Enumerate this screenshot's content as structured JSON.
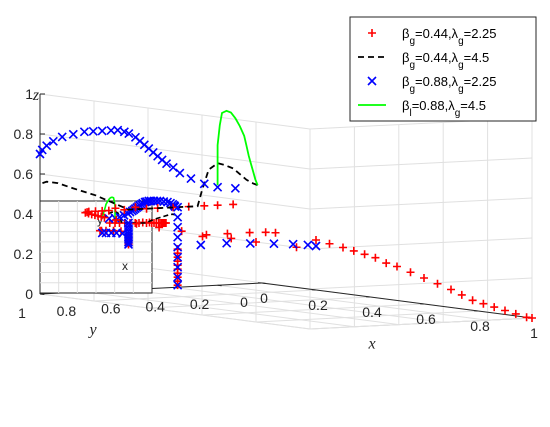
{
  "chart_data": {
    "type": "scatter",
    "dimensions": 3,
    "xlabel": "x",
    "ylabel": "y",
    "zlabel": "z",
    "xlim": [
      0,
      1
    ],
    "ylim": [
      0,
      1
    ],
    "zlim": [
      0,
      1
    ],
    "x_ticks": [
      "0",
      "0.2",
      "0.4",
      "0.6",
      "0.8",
      "1"
    ],
    "y_ticks": [
      "0",
      "0.2",
      "0.4",
      "0.6",
      "0.8",
      "1"
    ],
    "z_ticks": [
      "0",
      "0.2",
      "0.4",
      "0.6",
      "0.8",
      "1"
    ],
    "grid": true,
    "legend_position": "top-right",
    "legend_labels": [
      [
        "β",
        "g",
        "=0.44,λ",
        "g",
        "=2.25"
      ],
      [
        "β",
        "g",
        "=0.44,λ",
        "g",
        "=4.5"
      ],
      [
        "β",
        "g",
        "=0.88,λ",
        "g",
        "=2.25"
      ],
      [
        "β",
        "l",
        "=0.88,λ",
        "g",
        "=4.5"
      ]
    ],
    "inset_labels": [
      "y",
      "x"
    ],
    "series": [
      {
        "marker": "plus",
        "color": "#ff0000",
        "line": "none",
        "points": [
          [
            0.0,
            0.13,
            0.4
          ],
          [
            0.0,
            0.2,
            0.4
          ],
          [
            0.0,
            0.26,
            0.4
          ],
          [
            0.0,
            0.33,
            0.4
          ],
          [
            0.0,
            0.4,
            0.4
          ],
          [
            0.0,
            0.47,
            0.4
          ],
          [
            0.0,
            0.52,
            0.4
          ],
          [
            0.0,
            0.57,
            0.41
          ],
          [
            0.0,
            0.62,
            0.4
          ],
          [
            0.0,
            0.66,
            0.41
          ],
          [
            0.0,
            0.69,
            0.4
          ],
          [
            0.0,
            0.72,
            0.4
          ],
          [
            0.0,
            0.75,
            0.4
          ],
          [
            0.0,
            0.78,
            0.4
          ],
          [
            0.01,
            0.8,
            0.4
          ],
          [
            0.02,
            0.82,
            0.4
          ],
          [
            0.04,
            0.83,
            0.4
          ],
          [
            0.06,
            0.84,
            0.4
          ],
          [
            0.08,
            0.85,
            0.4
          ],
          [
            0.1,
            0.86,
            0.4
          ],
          [
            0.12,
            0.87,
            0.4
          ],
          [
            0.14,
            0.88,
            0.4
          ],
          [
            0.2,
            0.9,
            0.4
          ],
          [
            0.3,
            0.93,
            0.4
          ],
          [
            0.4,
            0.95,
            0.4
          ],
          [
            0.5,
            0.97,
            0.4
          ],
          [
            0.6,
            0.98,
            0.4
          ],
          [
            0.7,
            0.99,
            0.4
          ],
          [
            0.8,
            1.0,
            0.4
          ],
          [
            0.95,
            1.0,
            0.4
          ],
          [
            0.0,
            0.38,
            0.01
          ],
          [
            0.0,
            0.38,
            0.03
          ],
          [
            0.0,
            0.38,
            0.05
          ],
          [
            0.0,
            0.38,
            0.07
          ],
          [
            0.0,
            0.38,
            0.09
          ],
          [
            0.0,
            0.38,
            0.11
          ],
          [
            0.0,
            0.38,
            0.13
          ],
          [
            0.0,
            0.38,
            0.15
          ],
          [
            0.0,
            0.38,
            0.17
          ],
          [
            0.0,
            0.38,
            0.19
          ],
          [
            0.01,
            0.28,
            0.25
          ],
          [
            0.02,
            0.18,
            0.26
          ],
          [
            0.02,
            0.08,
            0.26
          ],
          [
            0.03,
            0.02,
            0.26
          ],
          [
            0.05,
            0.0,
            0.26
          ],
          [
            0.2,
            0.0,
            0.25
          ],
          [
            0.25,
            0.0,
            0.24
          ],
          [
            0.3,
            0.0,
            0.23
          ],
          [
            0.34,
            0.0,
            0.22
          ],
          [
            0.38,
            0.0,
            0.21
          ],
          [
            0.42,
            0.0,
            0.2
          ],
          [
            0.46,
            0.0,
            0.18
          ],
          [
            0.5,
            0.0,
            0.17
          ],
          [
            0.55,
            0.0,
            0.15
          ],
          [
            0.6,
            0.0,
            0.13
          ],
          [
            0.65,
            0.0,
            0.11
          ],
          [
            0.7,
            0.0,
            0.09
          ],
          [
            0.74,
            0.0,
            0.07
          ],
          [
            0.78,
            0.0,
            0.05
          ],
          [
            0.82,
            0.0,
            0.04
          ],
          [
            0.86,
            0.0,
            0.03
          ],
          [
            0.9,
            0.0,
            0.02
          ],
          [
            0.94,
            0.0,
            0.01
          ],
          [
            0.98,
            0.0,
            0.0
          ],
          [
            1.0,
            0.0,
            0.0
          ]
        ]
      },
      {
        "marker": "none",
        "color": "#000000",
        "line": "dashed",
        "points": [
          [
            0.0,
            0.02,
            0.49
          ],
          [
            0.0,
            0.04,
            0.5
          ],
          [
            0.0,
            0.07,
            0.52
          ],
          [
            0.0,
            0.1,
            0.55
          ],
          [
            0.0,
            0.13,
            0.58
          ],
          [
            0.0,
            0.17,
            0.6
          ],
          [
            0.0,
            0.2,
            0.61
          ],
          [
            0.0,
            0.24,
            0.58
          ],
          [
            0.0,
            0.27,
            0.48
          ],
          [
            0.0,
            0.29,
            0.4
          ],
          [
            0.0,
            0.6,
            0.4
          ],
          [
            0.0,
            0.75,
            0.48
          ],
          [
            0.0,
            0.85,
            0.52
          ],
          [
            0.0,
            0.92,
            0.55
          ],
          [
            0.0,
            0.97,
            0.56
          ],
          [
            0.0,
            1.0,
            0.55
          ]
        ]
      },
      {
        "marker": "x",
        "color": "#0000ff",
        "line": "none",
        "points": [
          [
            0.0,
            0.12,
            0.48
          ],
          [
            0.0,
            0.2,
            0.49
          ],
          [
            0.0,
            0.26,
            0.51
          ],
          [
            0.0,
            0.32,
            0.54
          ],
          [
            0.0,
            0.37,
            0.57
          ],
          [
            0.0,
            0.4,
            0.6
          ],
          [
            0.0,
            0.43,
            0.62
          ],
          [
            0.0,
            0.45,
            0.64
          ],
          [
            0.0,
            0.47,
            0.66
          ],
          [
            0.0,
            0.49,
            0.68
          ],
          [
            0.0,
            0.51,
            0.7
          ],
          [
            0.0,
            0.53,
            0.72
          ],
          [
            0.0,
            0.55,
            0.74
          ],
          [
            0.0,
            0.57,
            0.76
          ],
          [
            0.0,
            0.6,
            0.78
          ],
          [
            0.0,
            0.62,
            0.79
          ],
          [
            0.0,
            0.65,
            0.8
          ],
          [
            0.0,
            0.68,
            0.8
          ],
          [
            0.0,
            0.72,
            0.8
          ],
          [
            0.0,
            0.76,
            0.8
          ],
          [
            0.0,
            0.8,
            0.8
          ],
          [
            0.0,
            0.85,
            0.79
          ],
          [
            0.0,
            0.9,
            0.78
          ],
          [
            0.0,
            0.94,
            0.76
          ],
          [
            0.0,
            0.97,
            0.74
          ],
          [
            0.0,
            0.99,
            0.72
          ],
          [
            0.0,
            1.0,
            0.7
          ],
          [
            0.0,
            0.38,
            0.4
          ],
          [
            0.0,
            0.38,
            0.35
          ],
          [
            0.0,
            0.38,
            0.3
          ],
          [
            0.0,
            0.38,
            0.25
          ],
          [
            0.0,
            0.38,
            0.2
          ],
          [
            0.0,
            0.38,
            0.15
          ],
          [
            0.0,
            0.38,
            0.1
          ],
          [
            0.0,
            0.38,
            0.05
          ],
          [
            0.0,
            0.38,
            0.01
          ],
          [
            0.02,
            0.3,
            0.21
          ],
          [
            0.05,
            0.22,
            0.22
          ],
          [
            0.08,
            0.15,
            0.22
          ],
          [
            0.11,
            0.08,
            0.22
          ],
          [
            0.14,
            0.03,
            0.22
          ],
          [
            0.17,
            0.0,
            0.22
          ],
          [
            0.2,
            0.0,
            0.22
          ]
        ]
      },
      {
        "marker": "none",
        "color": "#00ff00",
        "line": "solid",
        "points": [
          [
            0.0,
            0.02,
            0.49
          ],
          [
            0.0,
            0.03,
            0.52
          ],
          [
            0.0,
            0.04,
            0.56
          ],
          [
            0.0,
            0.05,
            0.6
          ],
          [
            0.0,
            0.06,
            0.64
          ],
          [
            0.0,
            0.07,
            0.69
          ],
          [
            0.0,
            0.08,
            0.74
          ],
          [
            0.0,
            0.1,
            0.79
          ],
          [
            0.0,
            0.12,
            0.83
          ],
          [
            0.0,
            0.14,
            0.86
          ],
          [
            0.0,
            0.16,
            0.87
          ],
          [
            0.0,
            0.18,
            0.86
          ],
          [
            0.0,
            0.19,
            0.8
          ],
          [
            0.0,
            0.2,
            0.7
          ],
          [
            0.0,
            0.2,
            0.6
          ],
          [
            0.0,
            0.2,
            0.5
          ]
        ]
      }
    ]
  }
}
